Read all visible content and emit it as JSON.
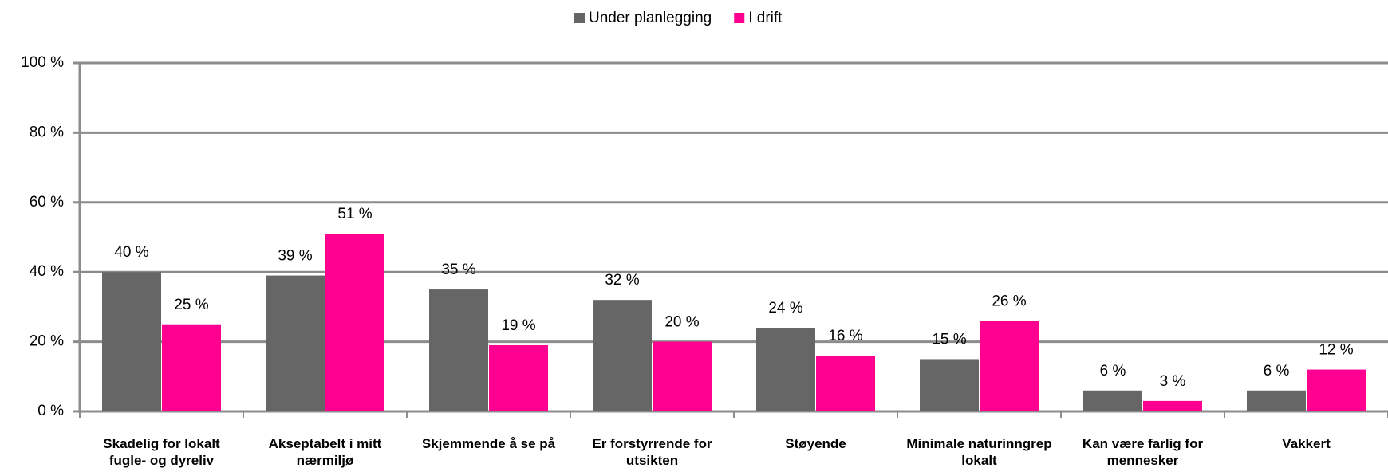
{
  "chart_data": {
    "type": "bar",
    "categories": [
      "Skadelig for lokalt fugle- og dyreliv",
      "Akseptabelt i mitt nærmiljø",
      "Skjemmende å se på",
      "Er forstyrrende for utsikten",
      "Støyende",
      "Minimale naturinngrep lokalt",
      "Kan være farlig for mennesker",
      "Vakkert"
    ],
    "series": [
      {
        "name": "Under planlegging",
        "color": "#666666",
        "values": [
          40,
          39,
          35,
          32,
          24,
          15,
          6,
          6
        ],
        "value_labels": [
          "40 %",
          "39 %",
          "35 %",
          "32 %",
          "24 %",
          "15 %",
          "6 %",
          "6 %"
        ]
      },
      {
        "name": "I drift",
        "color": "#ff0090",
        "values": [
          25,
          51,
          19,
          20,
          16,
          26,
          3,
          12
        ],
        "value_labels": [
          "25 %",
          "51 %",
          "19 %",
          "20 %",
          "16 %",
          "26 %",
          "3 %",
          "12 %"
        ]
      }
    ],
    "ylim": [
      0,
      100
    ],
    "yticks": [
      {
        "value": 0,
        "label": "0 %"
      },
      {
        "value": 20,
        "label": "20 %"
      },
      {
        "value": 40,
        "label": "40 %"
      },
      {
        "value": 60,
        "label": "60 %"
      },
      {
        "value": 80,
        "label": "80 %"
      },
      {
        "value": 100,
        "label": "100 %"
      }
    ],
    "grid": true,
    "legend": "top"
  }
}
